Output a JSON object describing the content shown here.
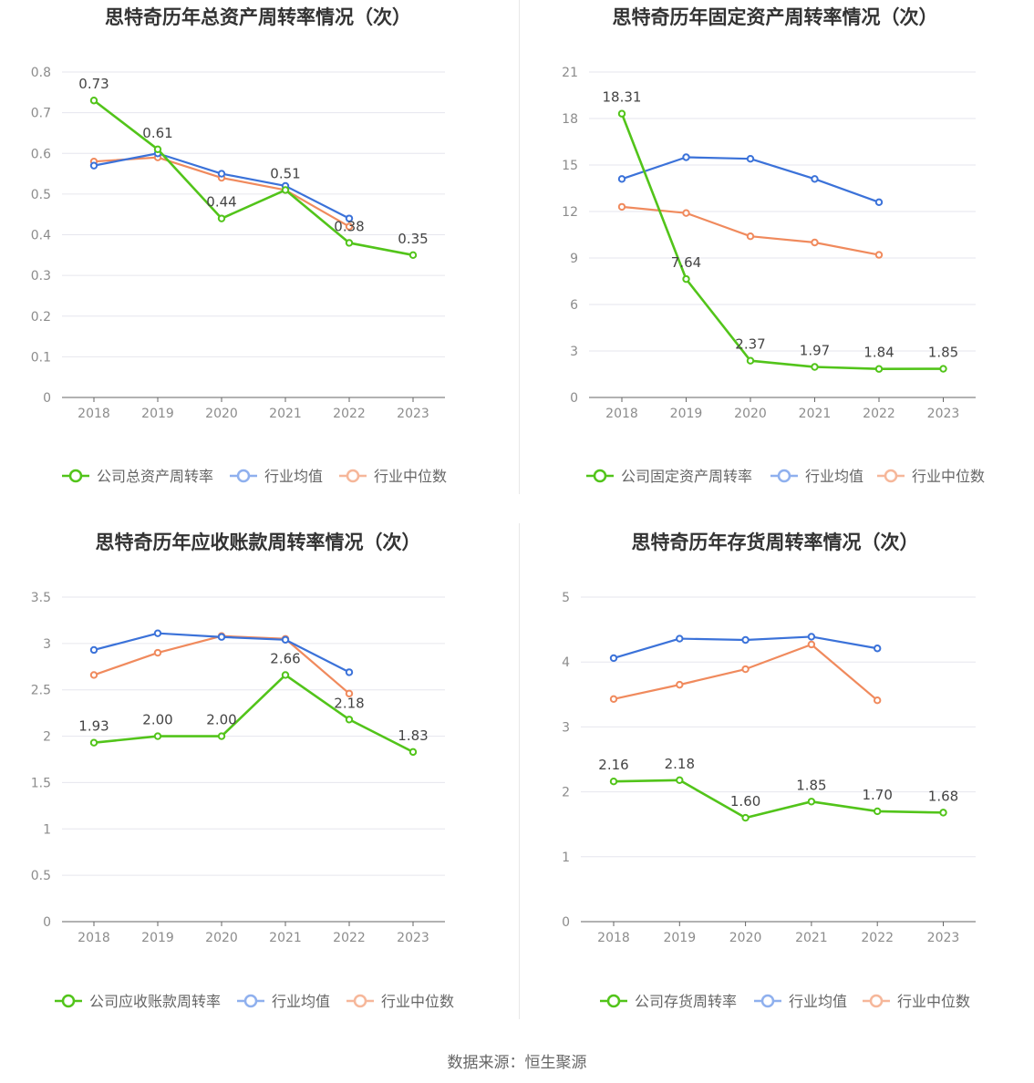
{
  "source_label": "数据来源：恒生聚源",
  "colors": {
    "company": "#52c41a",
    "average": "#3b72d9",
    "median": "#f08a5d",
    "grid": "#e6e6ee",
    "axis": "#666666",
    "tick_text": "#8c8c8c",
    "title": "#333333"
  },
  "chart_data": [
    {
      "type": "line",
      "title": "思特奇历年总资产周转率情况（次）",
      "categories": [
        "2018",
        "2019",
        "2020",
        "2021",
        "2022",
        "2023"
      ],
      "y_ticks": [
        "0",
        "0.1",
        "0.2",
        "0.3",
        "0.4",
        "0.5",
        "0.6",
        "0.7",
        "0.8"
      ],
      "ylim": [
        0,
        0.8
      ],
      "series": [
        {
          "name": "公司总资产周转率",
          "role": "company",
          "values": [
            0.73,
            0.61,
            0.44,
            0.51,
            0.38,
            0.35
          ],
          "labels": [
            "0.73",
            "0.61",
            "0.44",
            "0.51",
            "0.38",
            "0.35"
          ]
        },
        {
          "name": "行业均值",
          "role": "average",
          "values": [
            0.57,
            0.6,
            0.55,
            0.52,
            0.44,
            null
          ]
        },
        {
          "name": "行业中位数",
          "role": "median",
          "values": [
            0.58,
            0.59,
            0.54,
            0.51,
            0.42,
            null
          ]
        }
      ]
    },
    {
      "type": "line",
      "title": "思特奇历年固定资产周转率情况（次）",
      "categories": [
        "2018",
        "2019",
        "2020",
        "2021",
        "2022",
        "2023"
      ],
      "y_ticks": [
        "0",
        "3",
        "6",
        "9",
        "12",
        "15",
        "18",
        "21"
      ],
      "ylim": [
        0,
        21
      ],
      "series": [
        {
          "name": "公司固定资产周转率",
          "role": "company",
          "values": [
            18.31,
            7.64,
            2.37,
            1.97,
            1.84,
            1.85
          ],
          "labels": [
            "18.31",
            "7.64",
            "2.37",
            "1.97",
            "1.84",
            "1.85"
          ]
        },
        {
          "name": "行业均值",
          "role": "average",
          "values": [
            14.1,
            15.5,
            15.4,
            14.1,
            12.6,
            null
          ]
        },
        {
          "name": "行业中位数",
          "role": "median",
          "values": [
            12.3,
            11.9,
            10.4,
            10.0,
            9.2,
            null
          ]
        }
      ]
    },
    {
      "type": "line",
      "title": "思特奇历年应收账款周转率情况（次）",
      "categories": [
        "2018",
        "2019",
        "2020",
        "2021",
        "2022",
        "2023"
      ],
      "y_ticks": [
        "0",
        "0.5",
        "1",
        "1.5",
        "2",
        "2.5",
        "3",
        "3.5"
      ],
      "ylim": [
        0,
        3.5
      ],
      "series": [
        {
          "name": "公司应收账款周转率",
          "role": "company",
          "values": [
            1.93,
            2.0,
            2.0,
            2.66,
            2.18,
            1.83
          ],
          "labels": [
            "1.93",
            "2.00",
            "2.00",
            "2.66",
            "2.18",
            "1.83"
          ]
        },
        {
          "name": "行业均值",
          "role": "average",
          "values": [
            2.93,
            3.11,
            3.07,
            3.04,
            2.69,
            null
          ]
        },
        {
          "name": "行业中位数",
          "role": "median",
          "values": [
            2.66,
            2.9,
            3.08,
            3.05,
            2.46,
            null
          ]
        }
      ]
    },
    {
      "type": "line",
      "title": "思特奇历年存货周转率情况（次）",
      "categories": [
        "2018",
        "2019",
        "2020",
        "2021",
        "2022",
        "2023"
      ],
      "y_ticks": [
        "0",
        "1",
        "2",
        "3",
        "4",
        "5"
      ],
      "ylim": [
        0,
        5
      ],
      "series": [
        {
          "name": "公司存货周转率",
          "role": "company",
          "values": [
            2.16,
            2.18,
            1.6,
            1.85,
            1.7,
            1.68
          ],
          "labels": [
            "2.16",
            "2.18",
            "1.60",
            "1.85",
            "1.70",
            "1.68"
          ]
        },
        {
          "name": "行业均值",
          "role": "average",
          "values": [
            4.06,
            4.36,
            4.34,
            4.39,
            4.21,
            null
          ]
        },
        {
          "name": "行业中位数",
          "role": "median",
          "values": [
            3.43,
            3.65,
            3.89,
            4.27,
            3.41,
            null
          ]
        }
      ]
    }
  ]
}
